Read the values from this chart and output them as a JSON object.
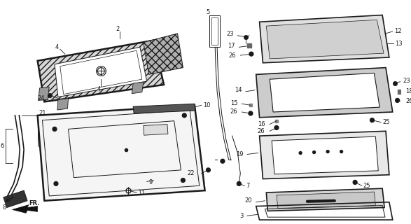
{
  "bg_color": "#ffffff",
  "line_color": "#1a1a1a",
  "fig_width": 5.87,
  "fig_height": 3.2,
  "dpi": 100
}
